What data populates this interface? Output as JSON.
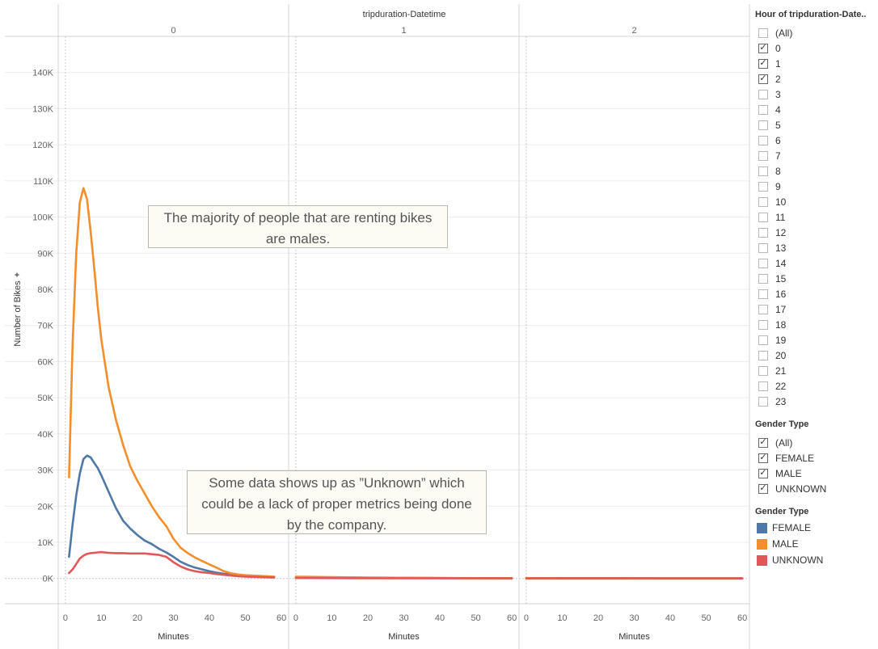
{
  "chart_data": {
    "type": "line",
    "column_header_title": "tripduration-Datetime",
    "panels": [
      "0",
      "1",
      "2"
    ],
    "xlabel": "Minutes",
    "ylabel": "Number of Bikes",
    "xlim": [
      -2,
      62
    ],
    "ylim": [
      -7000,
      150000
    ],
    "x_ticks": [
      0,
      10,
      20,
      30,
      40,
      50,
      60
    ],
    "y_ticks": [
      0,
      10000,
      20000,
      30000,
      40000,
      50000,
      60000,
      70000,
      80000,
      90000,
      100000,
      110000,
      120000,
      130000,
      140000
    ],
    "y_tick_labels": [
      "0K",
      "10K",
      "20K",
      "30K",
      "40K",
      "50K",
      "60K",
      "70K",
      "80K",
      "90K",
      "100K",
      "110K",
      "120K",
      "130K",
      "140K"
    ],
    "series": [
      {
        "name": "FEMALE",
        "color": "#4e79a7",
        "panels": [
          {
            "x": [
              1,
              2,
              3,
              4,
              5,
              6,
              7,
              8,
              9,
              10,
              12,
              14,
              16,
              18,
              20,
              22,
              24,
              26,
              28,
              30,
              32,
              34,
              36,
              38,
              40,
              42,
              44,
              46,
              48,
              50,
              54,
              58
            ],
            "y": [
              6000,
              15000,
              23000,
              29000,
              33000,
              34000,
              33500,
              32000,
              30500,
              28500,
              24000,
              19500,
              16000,
              13800,
              12000,
              10500,
              9500,
              8200,
              7200,
              6000,
              4600,
              3700,
              3000,
              2500,
              2000,
              1600,
              1300,
              1050,
              850,
              700,
              500,
              400
            ]
          },
          {
            "x": [
              0,
              10,
              20,
              30,
              40,
              50,
              60
            ],
            "y": [
              400,
              250,
              200,
              150,
              100,
              80,
              60
            ]
          },
          {
            "x": [
              0,
              10,
              20,
              30,
              40,
              50,
              60
            ],
            "y": [
              60,
              50,
              50,
              40,
              40,
              40,
              30
            ]
          }
        ]
      },
      {
        "name": "MALE",
        "color": "#f28e2b",
        "panels": [
          {
            "x": [
              1,
              2,
              3,
              4,
              5,
              6,
              7,
              8,
              9,
              10,
              12,
              14,
              16,
              18,
              20,
              22,
              24,
              26,
              28,
              30,
              32,
              34,
              36,
              38,
              40,
              42,
              44,
              46,
              48,
              50,
              54,
              58
            ],
            "y": [
              28000,
              65000,
              90000,
              104000,
              108000,
              105000,
              96000,
              86000,
              75000,
              66000,
              53000,
              44000,
              37000,
              31000,
              27000,
              23500,
              20000,
              17000,
              14500,
              11000,
              8500,
              7000,
              5800,
              4800,
              3900,
              3000,
              2000,
              1400,
              1100,
              900,
              700,
              500
            ]
          },
          {
            "x": [
              0,
              10,
              20,
              30,
              40,
              50,
              60
            ],
            "y": [
              500,
              350,
              250,
              200,
              150,
              100,
              80
            ]
          },
          {
            "x": [
              0,
              10,
              20,
              30,
              40,
              50,
              60
            ],
            "y": [
              80,
              60,
              60,
              50,
              50,
              40,
              40
            ]
          }
        ]
      },
      {
        "name": "UNKNOWN",
        "color": "#e15759",
        "panels": [
          {
            "x": [
              1,
              2,
              3,
              4,
              5,
              6,
              7,
              8,
              9,
              10,
              12,
              14,
              16,
              18,
              20,
              22,
              24,
              26,
              28,
              30,
              32,
              34,
              36,
              38,
              40,
              42,
              44,
              46,
              48,
              50,
              54,
              58
            ],
            "y": [
              1500,
              2500,
              4000,
              5500,
              6300,
              6800,
              7000,
              7100,
              7200,
              7300,
              7100,
              7000,
              7000,
              6900,
              6900,
              6900,
              6700,
              6500,
              6000,
              4500,
              3300,
              2500,
              2000,
              1700,
              1500,
              1200,
              1000,
              800,
              600,
              500,
              350,
              250
            ]
          },
          {
            "x": [
              0,
              10,
              20,
              30,
              40,
              50,
              60
            ],
            "y": [
              120,
              80,
              60,
              50,
              40,
              30,
              20
            ]
          },
          {
            "x": [
              0,
              10,
              20,
              30,
              40,
              50,
              60
            ],
            "y": [
              20,
              20,
              15,
              15,
              10,
              10,
              10
            ]
          }
        ]
      }
    ],
    "grid": true,
    "legend_position": "right"
  },
  "annotations": [
    {
      "text": "The majority of people that are renting bikes are males."
    },
    {
      "text": "Some data shows up as ”Unknown” which could be a lack of proper metrics being done by the company."
    }
  ],
  "filter_hour": {
    "title": "Hour of tripduration-Date..",
    "items": [
      {
        "label": "(All)",
        "checked": false
      },
      {
        "label": "0",
        "checked": true
      },
      {
        "label": "1",
        "checked": true
      },
      {
        "label": "2",
        "checked": true
      },
      {
        "label": "3",
        "checked": false
      },
      {
        "label": "4",
        "checked": false
      },
      {
        "label": "5",
        "checked": false
      },
      {
        "label": "6",
        "checked": false
      },
      {
        "label": "7",
        "checked": false
      },
      {
        "label": "8",
        "checked": false
      },
      {
        "label": "9",
        "checked": false
      },
      {
        "label": "10",
        "checked": false
      },
      {
        "label": "11",
        "checked": false
      },
      {
        "label": "12",
        "checked": false
      },
      {
        "label": "13",
        "checked": false
      },
      {
        "label": "14",
        "checked": false
      },
      {
        "label": "15",
        "checked": false
      },
      {
        "label": "16",
        "checked": false
      },
      {
        "label": "17",
        "checked": false
      },
      {
        "label": "18",
        "checked": false
      },
      {
        "label": "19",
        "checked": false
      },
      {
        "label": "20",
        "checked": false
      },
      {
        "label": "21",
        "checked": false
      },
      {
        "label": "22",
        "checked": false
      },
      {
        "label": "23",
        "checked": false
      }
    ]
  },
  "filter_gender": {
    "title": "Gender Type",
    "items": [
      {
        "label": "(All)",
        "checked": true
      },
      {
        "label": "FEMALE",
        "checked": true
      },
      {
        "label": "MALE",
        "checked": true
      },
      {
        "label": "UNKNOWN",
        "checked": true
      }
    ]
  },
  "legend": {
    "title": "Gender Type",
    "items": [
      {
        "label": "FEMALE",
        "color": "#4e79a7"
      },
      {
        "label": "MALE",
        "color": "#f28e2b"
      },
      {
        "label": "UNKNOWN",
        "color": "#e15759"
      }
    ]
  }
}
